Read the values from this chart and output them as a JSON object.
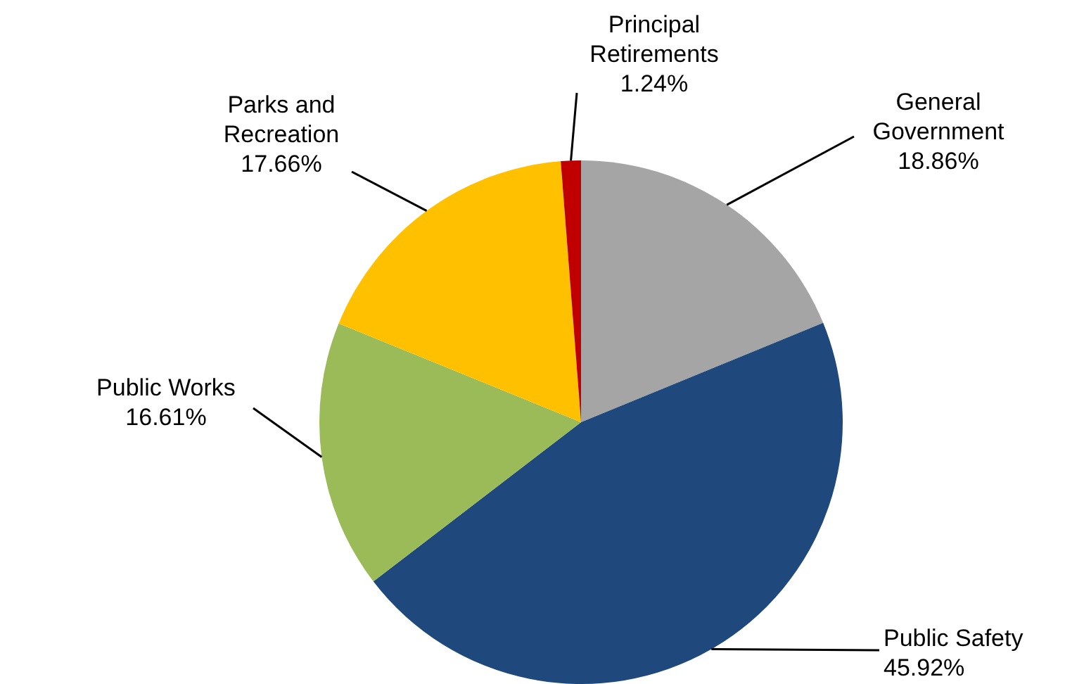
{
  "chart_data": {
    "type": "pie",
    "categories": [
      "General Government",
      "Public Safety",
      "Public Works",
      "Parks and Recreation",
      "Principal Retirements"
    ],
    "values": [
      18.86,
      45.92,
      16.61,
      17.66,
      1.24
    ],
    "colors": [
      "#a5a5a5",
      "#1f497d",
      "#9bbb59",
      "#ffc000",
      "#c00000"
    ],
    "value_labels": [
      "18.86%",
      "45.92%",
      "16.61%",
      "17.66%",
      "1.24%"
    ]
  }
}
